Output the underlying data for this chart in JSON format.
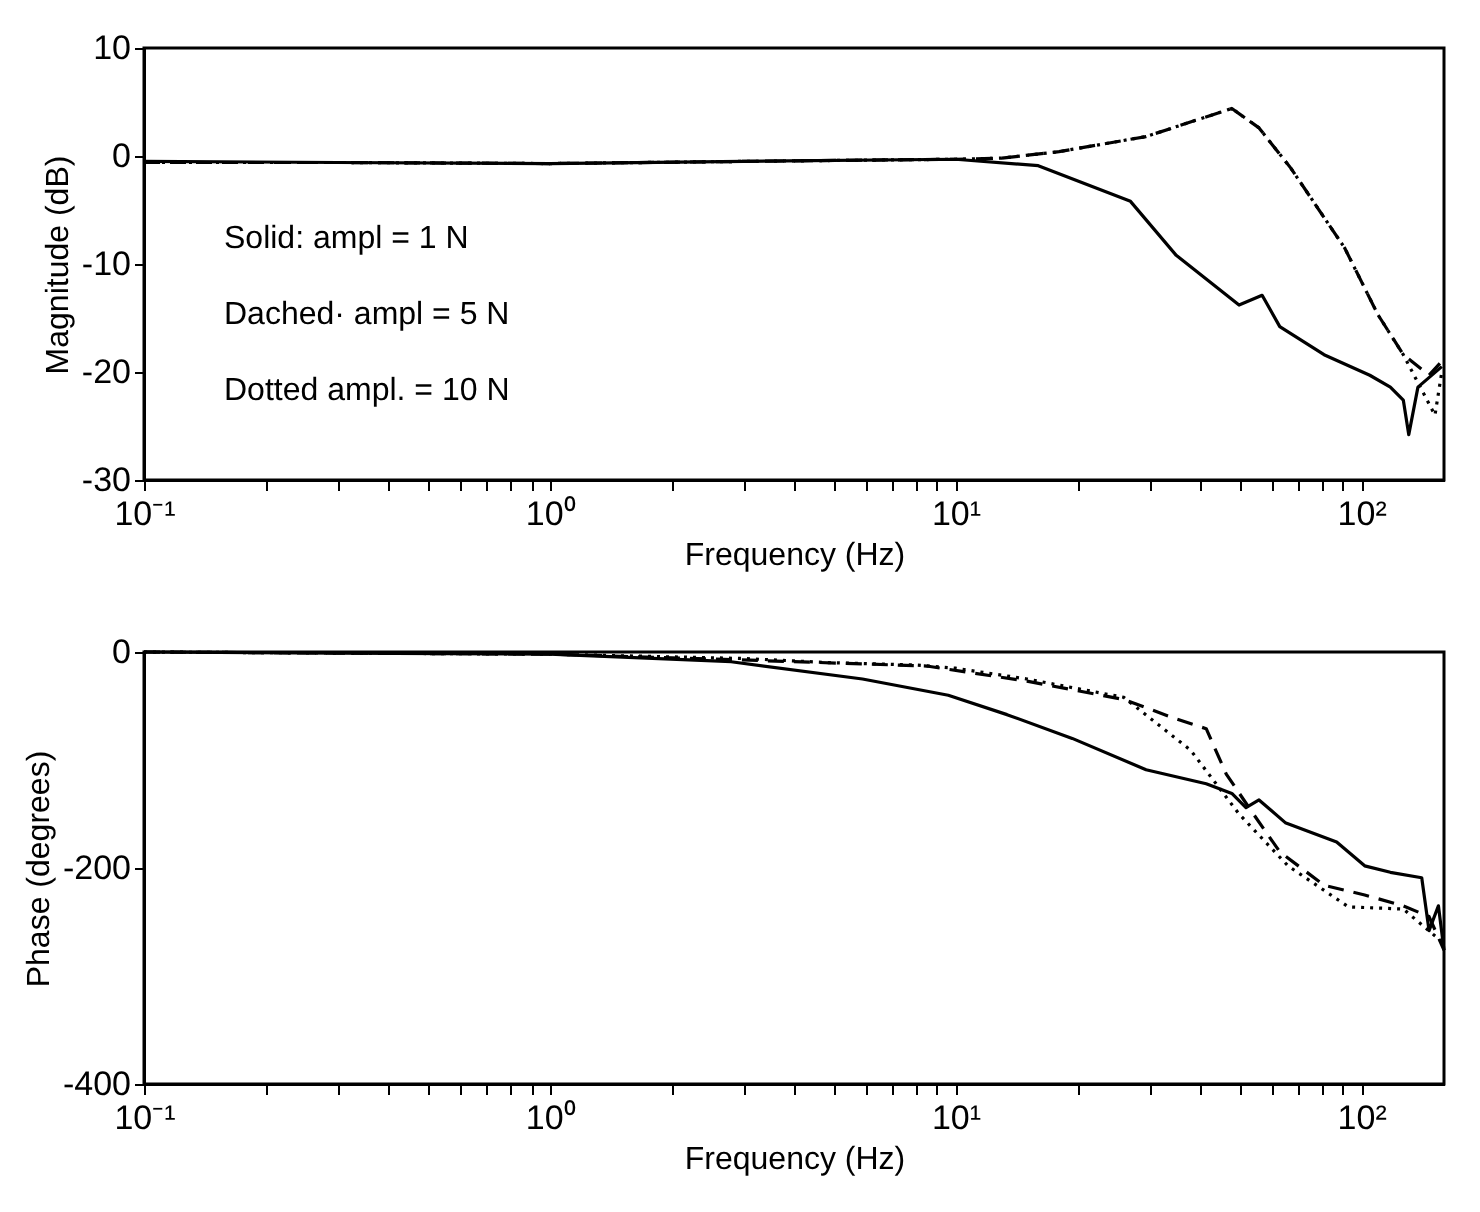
{
  "chart_data": [
    {
      "type": "line",
      "xlabel": "Frequency (Hz)",
      "ylabel": "Magnitude (dB)",
      "log": "x",
      "grid": false,
      "xlim": [
        0.1,
        160
      ],
      "ylim": [
        -30,
        10
      ],
      "xticks": [
        {
          "value": 0.1,
          "label": "10⁻¹"
        },
        {
          "value": 0.2,
          "label": null
        },
        {
          "value": 0.3,
          "label": null
        },
        {
          "value": 0.4,
          "label": null
        },
        {
          "value": 0.5,
          "label": null
        },
        {
          "value": 0.6,
          "label": null
        },
        {
          "value": 0.7,
          "label": null
        },
        {
          "value": 0.8,
          "label": null
        },
        {
          "value": 0.9,
          "label": null
        },
        {
          "value": 1,
          "label": "10⁰"
        },
        {
          "value": 2,
          "label": null
        },
        {
          "value": 3,
          "label": null
        },
        {
          "value": 4,
          "label": null
        },
        {
          "value": 5,
          "label": null
        },
        {
          "value": 6,
          "label": null
        },
        {
          "value": 7,
          "label": null
        },
        {
          "value": 8,
          "label": null
        },
        {
          "value": 9,
          "label": null
        },
        {
          "value": 10,
          "label": "10¹"
        },
        {
          "value": 20,
          "label": null
        },
        {
          "value": 30,
          "label": null
        },
        {
          "value": 40,
          "label": null
        },
        {
          "value": 50,
          "label": null
        },
        {
          "value": 60,
          "label": null
        },
        {
          "value": 70,
          "label": null
        },
        {
          "value": 80,
          "label": null
        },
        {
          "value": 90,
          "label": null
        },
        {
          "value": 100,
          "label": "10²"
        }
      ],
      "yticks": [
        -30,
        -20,
        -10,
        0,
        10
      ],
      "annotations": [
        "Solid: ampl = 1 N",
        "Dached· ampl = 5 N",
        "Dotted ampl. = 10 N"
      ],
      "series": [
        {
          "color": "#000000",
          "line_style": "solid",
          "x": [
            0.1,
            0.3,
            1,
            3,
            10,
            16,
            27,
            35,
            50,
            57,
            63,
            81,
            105,
            118,
            127,
            131,
            138,
            158
          ],
          "values": [
            -0.5,
            -0.6,
            -0.7,
            -0.5,
            -0.3,
            -0.9,
            -4.2,
            -9.2,
            -13.8,
            -12.9,
            -15.8,
            -18.4,
            -20.3,
            -21.4,
            -22.6,
            -25.8,
            -21.4,
            -19.5
          ]
        },
        {
          "color": "#000000",
          "line_style": "dashed",
          "x": [
            0.1,
            0.3,
            1,
            3,
            10,
            13,
            18,
            29.5,
            48,
            56,
            67,
            91,
            110,
            127,
            147,
            158
          ],
          "values": [
            -0.6,
            -0.6,
            -0.7,
            -0.5,
            -0.3,
            -0.2,
            0.4,
            1.8,
            4.4,
            2.6,
            -1.1,
            -8.5,
            -14.7,
            -18.4,
            -20.3,
            -19
          ]
        },
        {
          "color": "#000000",
          "line_style": "dotted",
          "x": [
            0.1,
            0.3,
            1,
            3,
            10,
            13,
            18,
            29.5,
            48,
            56,
            67,
            91,
            110,
            127,
            152,
            158
          ],
          "values": [
            -0.6,
            -0.6,
            -0.7,
            -0.5,
            -0.3,
            -0.2,
            0.4,
            1.8,
            4.4,
            2.6,
            -1.1,
            -8.5,
            -14.7,
            -18.4,
            -24,
            -20
          ]
        }
      ]
    },
    {
      "type": "line",
      "xlabel": "Frequency (Hz)",
      "ylabel": "Phase (degrees)",
      "log": "x",
      "grid": false,
      "xlim": [
        0.1,
        160
      ],
      "ylim": [
        -400,
        0
      ],
      "xticks": [
        {
          "value": 0.1,
          "label": "10⁻¹"
        },
        {
          "value": 0.2,
          "label": null
        },
        {
          "value": 0.3,
          "label": null
        },
        {
          "value": 0.4,
          "label": null
        },
        {
          "value": 0.5,
          "label": null
        },
        {
          "value": 0.6,
          "label": null
        },
        {
          "value": 0.7,
          "label": null
        },
        {
          "value": 0.8,
          "label": null
        },
        {
          "value": 0.9,
          "label": null
        },
        {
          "value": 1,
          "label": "10⁰"
        },
        {
          "value": 2,
          "label": null
        },
        {
          "value": 3,
          "label": null
        },
        {
          "value": 4,
          "label": null
        },
        {
          "value": 5,
          "label": null
        },
        {
          "value": 6,
          "label": null
        },
        {
          "value": 7,
          "label": null
        },
        {
          "value": 8,
          "label": null
        },
        {
          "value": 9,
          "label": null
        },
        {
          "value": 10,
          "label": "10¹"
        },
        {
          "value": 20,
          "label": null
        },
        {
          "value": 30,
          "label": null
        },
        {
          "value": 40,
          "label": null
        },
        {
          "value": 50,
          "label": null
        },
        {
          "value": 60,
          "label": null
        },
        {
          "value": 70,
          "label": null
        },
        {
          "value": 80,
          "label": null
        },
        {
          "value": 90,
          "label": null
        },
        {
          "value": 100,
          "label": "10²"
        }
      ],
      "yticks": [
        -400,
        -200,
        0
      ],
      "series": [
        {
          "color": "#000000",
          "line_style": "solid",
          "x": [
            0.1,
            0.3,
            1,
            2.8,
            5.9,
            9.6,
            13.4,
            19.4,
            29.5,
            41.5,
            48,
            52,
            56,
            65,
            87,
            102,
            118,
            141,
            147,
            155,
            160
          ],
          "values": [
            0,
            -1,
            -2,
            -9,
            -25,
            -40,
            -58,
            -80,
            -109,
            -122,
            -131,
            -144,
            -137,
            -158,
            -176,
            -198,
            -204,
            -209,
            -258,
            -235,
            -276
          ]
        },
        {
          "color": "#000000",
          "line_style": "dashed",
          "x": [
            0.1,
            0.3,
            1,
            2.8,
            8.5,
            15,
            26,
            35,
            41.5,
            46.5,
            54,
            63,
            81,
            102,
            127,
            147,
            160
          ],
          "values": [
            0,
            -1,
            -2,
            -7,
            -13,
            -27,
            -44,
            -62,
            -71,
            -113,
            -149,
            -185,
            -216,
            -225,
            -235,
            -245,
            -276
          ]
        },
        {
          "color": "#000000",
          "line_style": "dotted",
          "x": [
            0.1,
            0.3,
            1,
            3,
            5,
            8,
            10,
            15,
            26,
            38,
            50,
            66,
            93,
            127,
            160
          ],
          "values": [
            0,
            -1,
            -2,
            -6,
            -10,
            -12,
            -15,
            -25,
            -42,
            -91,
            -150,
            -198,
            -236,
            -238,
            -270
          ]
        }
      ]
    }
  ]
}
